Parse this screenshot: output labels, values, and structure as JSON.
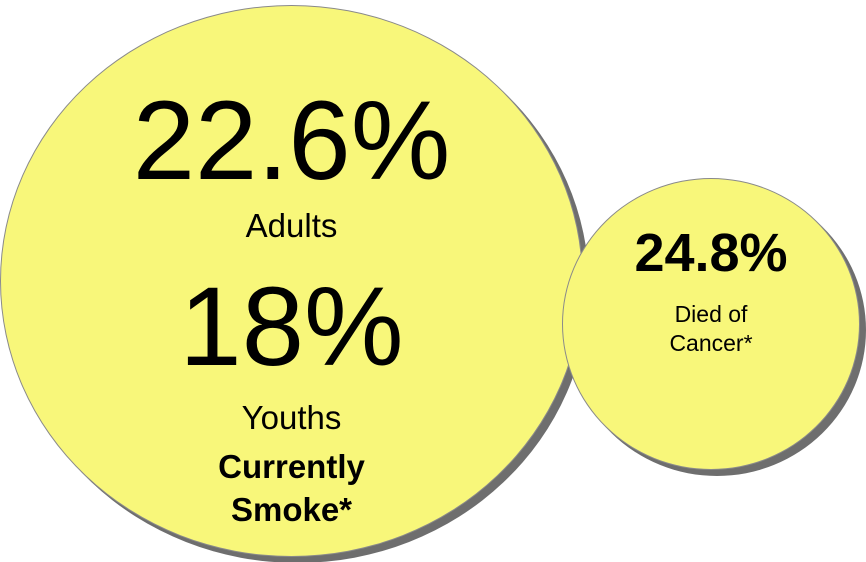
{
  "adults_circle": {
    "percent": "22.6%",
    "label": "Adults",
    "youth_percent": "18%",
    "youth_label": "Youths",
    "caption_line1": "Currently",
    "caption_line2": "Smoke*"
  },
  "cancer_circle": {
    "percent": "24.8%",
    "label_line1": "Died of",
    "label_line2": "Cancer*"
  },
  "colors": {
    "circle_fill": "#f8f77a",
    "circle_shadow": "#6e6e6e",
    "text": "#000000"
  }
}
